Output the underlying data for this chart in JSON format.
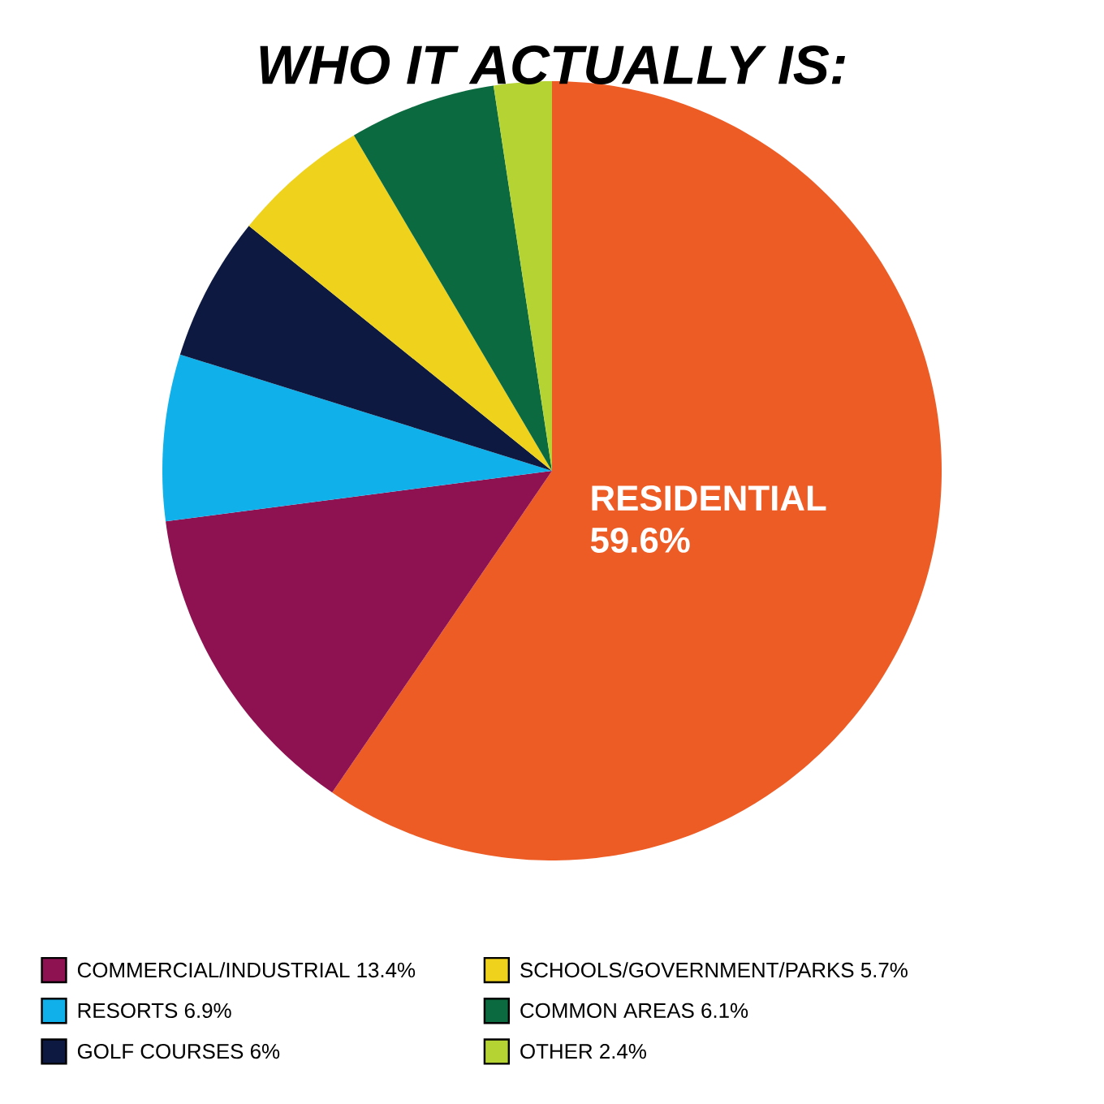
{
  "chart_data": {
    "type": "pie",
    "title": "WHO IT ACTUALLY IS:",
    "categories": [
      "RESIDENTIAL",
      "COMMERCIAL/INDUSTRIAL",
      "RESORTS",
      "GOLF COURSES",
      "SCHOOLS/GOVERNMENT/PARKS",
      "COMMON AREAS",
      "OTHER"
    ],
    "values": [
      59.6,
      13.4,
      6.9,
      6,
      5.7,
      6.1,
      2.4
    ],
    "value_labels": [
      "59.6%",
      "13.4%",
      "6.9%",
      "6%",
      "5.7%",
      "6.1%",
      "2.4%"
    ],
    "colors": [
      "#ee5c26",
      "#8e1152",
      "#10b1ea",
      "#0d1940",
      "#efd21c",
      "#0b6a3f",
      "#b6d334"
    ],
    "legend": "bottom"
  }
}
